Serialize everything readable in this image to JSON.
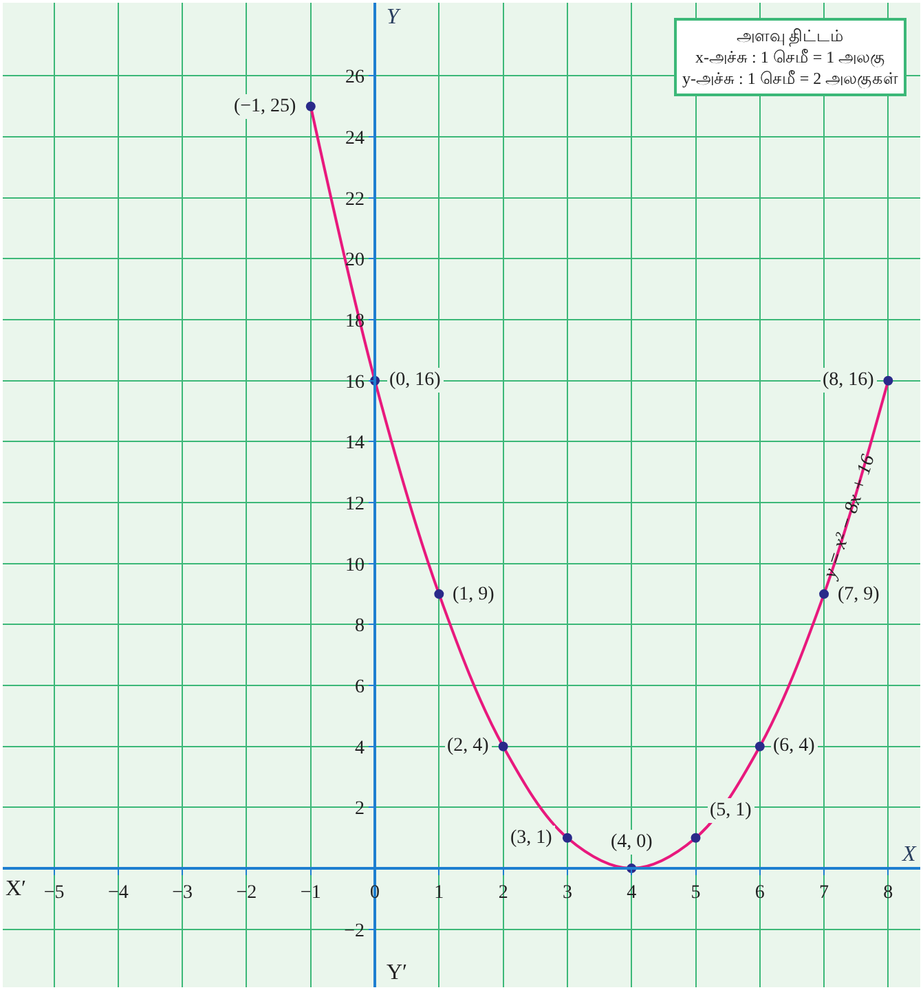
{
  "chart_data": {
    "type": "line",
    "xlabel": "X",
    "ylabel": "Y",
    "x": [
      -1,
      0,
      1,
      2,
      3,
      4,
      5,
      6,
      7,
      8
    ],
    "series": [
      {
        "color": "#e8197d",
        "marker": "none",
        "values": [
          25,
          16,
          9,
          4,
          1,
          0,
          1,
          4,
          9,
          16
        ]
      },
      {
        "type": "scatter",
        "color": "#2a2a8a",
        "marker": "circle",
        "values": [
          25,
          16,
          9,
          4,
          1,
          0,
          1,
          4,
          9,
          16
        ],
        "value_labels": [
          "(−1, 25)",
          "(0, 16)",
          "(1, 9)",
          "(2, 4)",
          "(3, 1)",
          "(4, 0)",
          "(5, 1)",
          "(6, 4)",
          "(7, 9)",
          "(8, 16)"
        ]
      }
    ],
    "xlim": [
      -5.8,
      8.5
    ],
    "ylim": [
      -3.9,
      28.4
    ],
    "xticks": [
      -5,
      -4,
      -3,
      -2,
      -1,
      0,
      1,
      2,
      3,
      4,
      5,
      6,
      7,
      8
    ],
    "yticks": [
      -2,
      {
        "value": 0,
        "label": null
      },
      2,
      4,
      6,
      8,
      10,
      12,
      14,
      16,
      18,
      20,
      22,
      24,
      26
    ],
    "grid": true,
    "annotations": [
      {
        "text": "y = x² − 8x + 16",
        "x": 7.4,
        "y": 11.5
      },
      "X′",
      "Y′",
      "அளவு திட்டம்\nx-அச்சு : 1 செமீ = 1 அலகு\ny-அச்சு : 1 செமீ = 2 அலகுகள்"
    ]
  }
}
